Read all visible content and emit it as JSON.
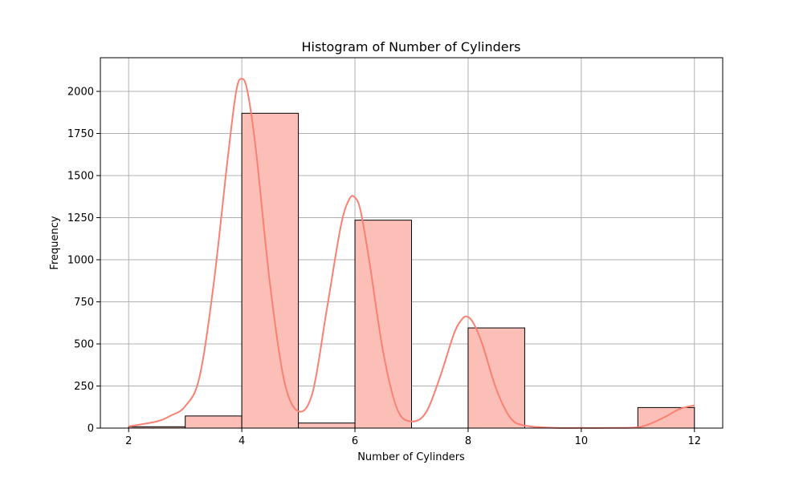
{
  "colors": {
    "bar_fill": "#fbbfb8",
    "bar_edge": "#000000",
    "kde_line": "#fa8072",
    "grid": "#b0b0b0"
  },
  "chart_data": {
    "type": "bar",
    "title": "Histogram of Number of Cylinders",
    "xlabel": "Number of Cylinders",
    "ylabel": "Frequency",
    "xlim": [
      1.5,
      12.5
    ],
    "ylim": [
      0,
      2200
    ],
    "grid": true,
    "xticks": [
      2,
      4,
      6,
      8,
      10,
      12
    ],
    "yticks": [
      0,
      250,
      500,
      750,
      1000,
      1250,
      1500,
      1750,
      2000
    ],
    "bins": [
      {
        "x0": 2,
        "x1": 3,
        "value": 8
      },
      {
        "x0": 3,
        "x1": 4,
        "value": 72
      },
      {
        "x0": 4,
        "x1": 5,
        "value": 1870
      },
      {
        "x0": 5,
        "x1": 6,
        "value": 30
      },
      {
        "x0": 6,
        "x1": 7,
        "value": 1235
      },
      {
        "x0": 7,
        "x1": 8,
        "value": 0
      },
      {
        "x0": 8,
        "x1": 9,
        "value": 595
      },
      {
        "x0": 9,
        "x1": 10,
        "value": 0
      },
      {
        "x0": 10,
        "x1": 11,
        "value": 0
      },
      {
        "x0": 11,
        "x1": 12,
        "value": 122
      }
    ],
    "kde": {
      "x": [
        2.0,
        2.5,
        2.75,
        3.0,
        3.25,
        3.5,
        3.75,
        3.9,
        4.0,
        4.1,
        4.25,
        4.5,
        4.75,
        5.0,
        5.25,
        5.5,
        5.75,
        5.9,
        6.0,
        6.1,
        6.25,
        6.5,
        6.75,
        7.0,
        7.25,
        7.5,
        7.75,
        7.9,
        8.0,
        8.1,
        8.25,
        8.5,
        8.75,
        9.0,
        9.5,
        10.0,
        10.5,
        11.0,
        11.25,
        11.5,
        11.75,
        12.0
      ],
      "y": [
        10,
        40,
        75,
        130,
        300,
        850,
        1600,
        2000,
        2075,
        2000,
        1650,
        850,
        280,
        100,
        210,
        700,
        1200,
        1360,
        1370,
        1290,
        1000,
        450,
        110,
        40,
        90,
        300,
        560,
        650,
        660,
        620,
        500,
        230,
        60,
        15,
        2,
        1,
        1,
        5,
        30,
        70,
        115,
        135
      ]
    }
  }
}
